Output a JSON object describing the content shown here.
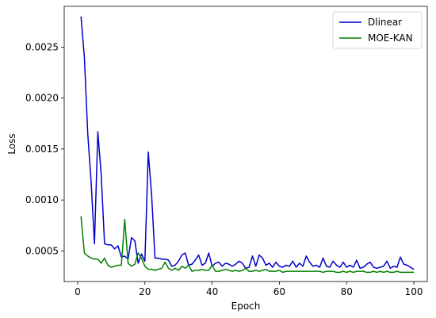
{
  "chart_data": {
    "type": "line",
    "xlabel": "Epoch",
    "ylabel": "Loss",
    "xlim": [
      -4,
      104
    ],
    "ylim": [
      0.0002,
      0.0029
    ],
    "x_ticks": [
      0,
      20,
      40,
      60,
      80,
      100
    ],
    "y_ticks": [
      0.0005,
      0.001,
      0.0015,
      0.002,
      0.0025
    ],
    "y_tick_labels": [
      "0.0005",
      "0.0010",
      "0.0015",
      "0.0020",
      "0.0025"
    ],
    "grid": false,
    "legend": {
      "position": "top-right"
    },
    "series": [
      {
        "name": "Dlinear",
        "color": "#0000cc",
        "x": [
          1,
          2,
          3,
          4,
          5,
          6,
          7,
          8,
          9,
          10,
          11,
          12,
          13,
          14,
          15,
          16,
          17,
          18,
          19,
          20,
          21,
          22,
          23,
          24,
          25,
          26,
          27,
          28,
          29,
          30,
          31,
          32,
          33,
          34,
          35,
          36,
          37,
          38,
          39,
          40,
          41,
          42,
          43,
          44,
          45,
          46,
          47,
          48,
          49,
          50,
          51,
          52,
          53,
          54,
          55,
          56,
          57,
          58,
          59,
          60,
          61,
          62,
          63,
          64,
          65,
          66,
          67,
          68,
          69,
          70,
          71,
          72,
          73,
          74,
          75,
          76,
          77,
          78,
          79,
          80,
          81,
          82,
          83,
          84,
          85,
          86,
          87,
          88,
          89,
          90,
          91,
          92,
          93,
          94,
          95,
          96,
          97,
          98,
          99,
          100
        ],
        "values": [
          0.0028,
          0.0024,
          0.00165,
          0.00118,
          0.00057,
          0.00167,
          0.00125,
          0.00057,
          0.00056,
          0.00056,
          0.00052,
          0.00055,
          0.00044,
          0.00045,
          0.00042,
          0.00063,
          0.0006,
          0.00038,
          0.00047,
          0.0004,
          0.00147,
          0.00105,
          0.00043,
          0.00043,
          0.00042,
          0.00042,
          0.00041,
          0.00035,
          0.00036,
          0.0004,
          0.00046,
          0.00048,
          0.00036,
          0.00037,
          0.00041,
          0.00046,
          0.00036,
          0.00038,
          0.00048,
          0.00035,
          0.00038,
          0.00039,
          0.00035,
          0.00038,
          0.00037,
          0.00035,
          0.00037,
          0.0004,
          0.00038,
          0.00033,
          0.00034,
          0.00045,
          0.00035,
          0.00046,
          0.00043,
          0.00036,
          0.00038,
          0.00034,
          0.00039,
          0.00035,
          0.00034,
          0.00036,
          0.00035,
          0.0004,
          0.00034,
          0.00038,
          0.00035,
          0.00045,
          0.00039,
          0.00035,
          0.00036,
          0.00034,
          0.00043,
          0.00035,
          0.00034,
          0.0004,
          0.00036,
          0.00034,
          0.00039,
          0.00034,
          0.00036,
          0.00034,
          0.00041,
          0.00033,
          0.00034,
          0.00037,
          0.00039,
          0.00034,
          0.00033,
          0.00034,
          0.00035,
          0.0004,
          0.00033,
          0.00035,
          0.00034,
          0.00044,
          0.00037,
          0.00036,
          0.00034,
          0.00032
        ]
      },
      {
        "name": "MOE-KAN",
        "color": "#007f00",
        "x": [
          1,
          2,
          3,
          4,
          5,
          6,
          7,
          8,
          9,
          10,
          11,
          12,
          13,
          14,
          15,
          16,
          17,
          18,
          19,
          20,
          21,
          22,
          23,
          24,
          25,
          26,
          27,
          28,
          29,
          30,
          31,
          32,
          33,
          34,
          35,
          36,
          37,
          38,
          39,
          40,
          41,
          42,
          43,
          44,
          45,
          46,
          47,
          48,
          49,
          50,
          51,
          52,
          53,
          54,
          55,
          56,
          57,
          58,
          59,
          60,
          61,
          62,
          63,
          64,
          65,
          66,
          67,
          68,
          69,
          70,
          71,
          72,
          73,
          74,
          75,
          76,
          77,
          78,
          79,
          80,
          81,
          82,
          83,
          84,
          85,
          86,
          87,
          88,
          89,
          90,
          91,
          92,
          93,
          94,
          95,
          96,
          97,
          98,
          99,
          100
        ],
        "values": [
          0.00084,
          0.00048,
          0.00045,
          0.00043,
          0.00042,
          0.00042,
          0.00038,
          0.00043,
          0.00036,
          0.00034,
          0.00035,
          0.00036,
          0.00036,
          0.00081,
          0.00038,
          0.00035,
          0.00037,
          0.00048,
          0.00043,
          0.00035,
          0.00032,
          0.00032,
          0.00031,
          0.00032,
          0.00033,
          0.00039,
          0.00033,
          0.00031,
          0.00033,
          0.00031,
          0.00035,
          0.00033,
          0.00036,
          0.0003,
          0.00031,
          0.00031,
          0.00032,
          0.00031,
          0.00031,
          0.00036,
          0.0003,
          0.0003,
          0.00031,
          0.00032,
          0.00031,
          0.0003,
          0.00031,
          0.0003,
          0.00031,
          0.00033,
          0.0003,
          0.0003,
          0.00031,
          0.0003,
          0.00031,
          0.00032,
          0.0003,
          0.0003,
          0.0003,
          0.00031,
          0.00029,
          0.0003,
          0.0003,
          0.0003,
          0.0003,
          0.0003,
          0.0003,
          0.0003,
          0.0003,
          0.0003,
          0.0003,
          0.0003,
          0.00029,
          0.0003,
          0.0003,
          0.0003,
          0.00029,
          0.00029,
          0.0003,
          0.00029,
          0.0003,
          0.00029,
          0.0003,
          0.0003,
          0.0003,
          0.00029,
          0.00029,
          0.0003,
          0.00029,
          0.0003,
          0.00029,
          0.0003,
          0.00029,
          0.00029,
          0.0003,
          0.00029,
          0.00029,
          0.00029,
          0.00029,
          0.00029
        ]
      }
    ]
  }
}
